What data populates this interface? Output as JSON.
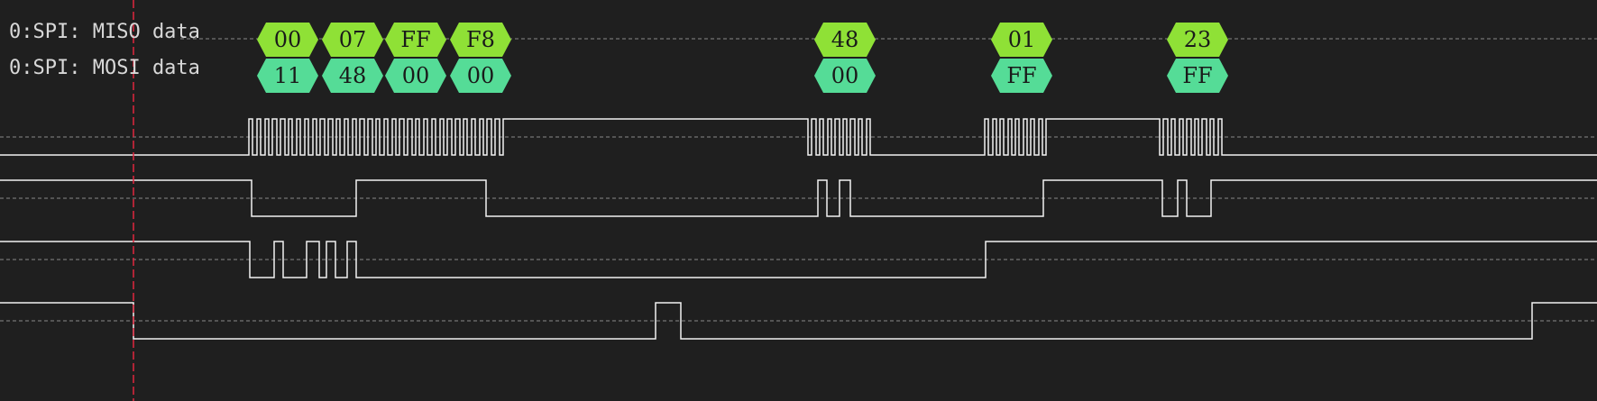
{
  "colors": {
    "background": "#1f1f1f",
    "trace": "#f2f2f2",
    "guide": "#8a8a8a",
    "cursor": "#e0273f",
    "miso_fill": "#8fe136",
    "mosi_fill": "#55dc97"
  },
  "labels": {
    "miso": "0:SPI: MISO data",
    "mosi": "0:SPI: MOSI data"
  },
  "decoded": {
    "miso": [
      "00",
      "07",
      "FF",
      "F8",
      "48",
      "01",
      "23"
    ],
    "mosi": [
      "11",
      "48",
      "00",
      "00",
      "00",
      "FF",
      "FF"
    ]
  }
}
